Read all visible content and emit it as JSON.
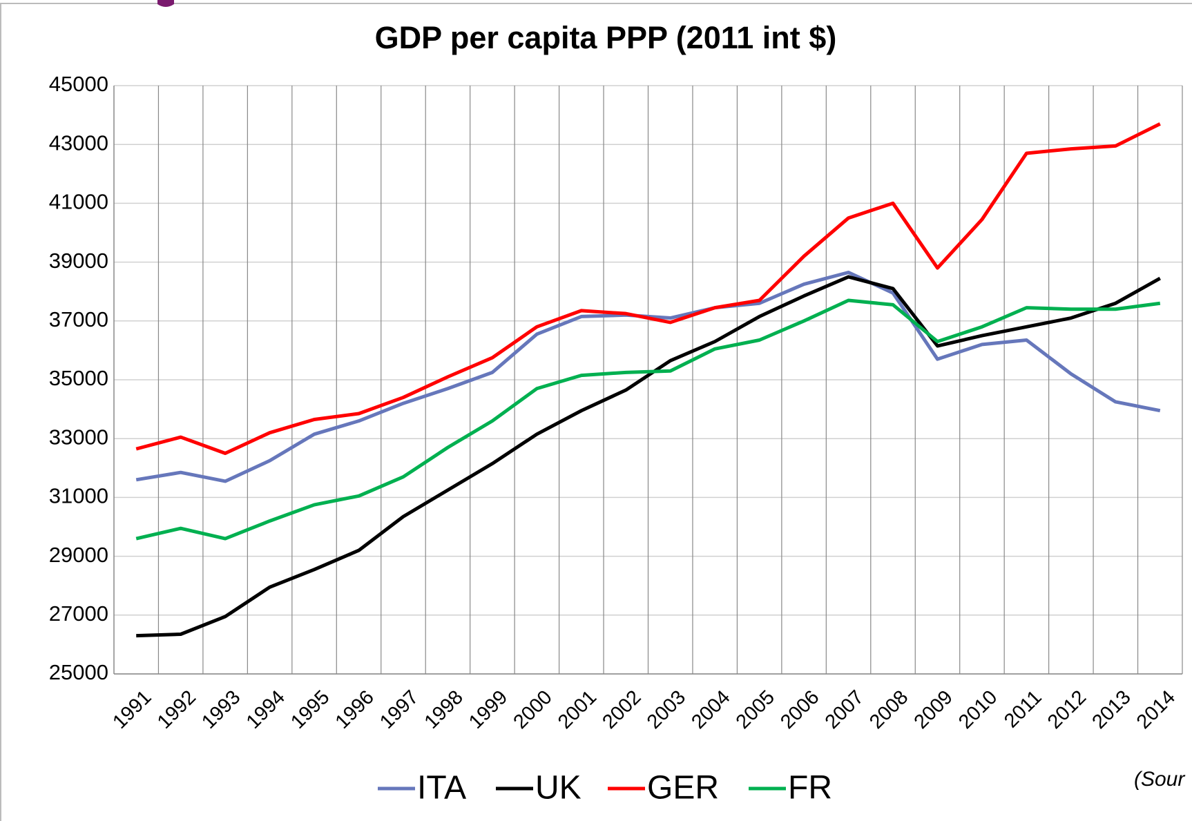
{
  "chart_data": {
    "type": "line",
    "title": "GDP per capita PPP (2011 int $)",
    "categories": [
      "1991",
      "1992",
      "1993",
      "1994",
      "1995",
      "1996",
      "1997",
      "1998",
      "1999",
      "2000",
      "2001",
      "2002",
      "2003",
      "2004",
      "2005",
      "2006",
      "2007",
      "2008",
      "2009",
      "2010",
      "2011",
      "2012",
      "2013",
      "2014"
    ],
    "series": [
      {
        "name": "ITA",
        "color": "#6677bb",
        "values": [
          31600,
          31850,
          31550,
          32250,
          33150,
          33600,
          34200,
          34700,
          35250,
          36550,
          37150,
          37200,
          37100,
          37450,
          37600,
          38250,
          38650,
          37950,
          35700,
          36200,
          36350,
          35200,
          34250,
          33950
        ]
      },
      {
        "name": "UK",
        "color": "#000000",
        "values": [
          26300,
          26350,
          26950,
          27950,
          28550,
          29200,
          30350,
          31250,
          32150,
          33150,
          33950,
          34650,
          35650,
          36300,
          37150,
          37850,
          38500,
          38100,
          36150,
          36500,
          36800,
          37100,
          37600,
          38450
        ]
      },
      {
        "name": "GER",
        "color": "#ff0000",
        "values": [
          32650,
          33050,
          32500,
          33200,
          33650,
          33850,
          34400,
          35100,
          35750,
          36800,
          37350,
          37250,
          36950,
          37450,
          37700,
          39200,
          40500,
          41000,
          38800,
          40450,
          42700,
          42850,
          42950,
          43700
        ]
      },
      {
        "name": "FR",
        "color": "#00b050",
        "values": [
          29600,
          29950,
          29600,
          30200,
          30750,
          31050,
          31700,
          32700,
          33600,
          34700,
          35150,
          35250,
          35300,
          36050,
          36350,
          37000,
          37700,
          37550,
          36300,
          36800,
          37450,
          37400,
          37400,
          37600
        ]
      }
    ],
    "ylim": [
      25000,
      45000
    ],
    "yticks": [
      25000,
      27000,
      29000,
      31000,
      33000,
      35000,
      37000,
      39000,
      41000,
      43000,
      45000
    ],
    "grid": true,
    "legend": "bottom",
    "annotation": "(Sour"
  }
}
